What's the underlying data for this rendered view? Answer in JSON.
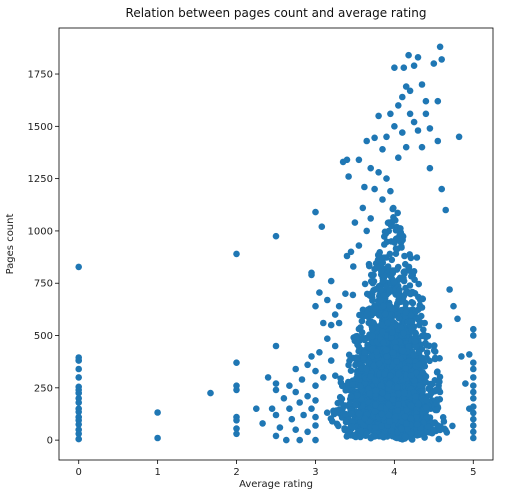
{
  "chart_data": {
    "type": "scatter",
    "title": "Relation between pages count and average rating",
    "xlabel": "Average rating",
    "ylabel": "Pages count",
    "xlim": [
      -0.25,
      5.25
    ],
    "ylim": [
      -95,
      1970
    ],
    "xticks": [
      0,
      1,
      2,
      3,
      4,
      5
    ],
    "yticks": [
      0,
      250,
      500,
      750,
      1000,
      1250,
      1500,
      1750
    ],
    "xtick_labels": [
      "0",
      "1",
      "2",
      "3",
      "4",
      "5"
    ],
    "ytick_labels": [
      "0",
      "250",
      "500",
      "750",
      "1000",
      "1250",
      "1500",
      "1750"
    ],
    "grid": false,
    "marker_color": "#1f77b4",
    "series": [
      {
        "points": [
          [
            0,
            828
          ],
          [
            0,
            395
          ],
          [
            0,
            380
          ],
          [
            0,
            340
          ],
          [
            0,
            300
          ],
          [
            0,
            255
          ],
          [
            0,
            240
          ],
          [
            0,
            225
          ],
          [
            0,
            200
          ],
          [
            0,
            180
          ],
          [
            0,
            150
          ],
          [
            0,
            135
          ],
          [
            0,
            110
          ],
          [
            0,
            95
          ],
          [
            0,
            75
          ],
          [
            0,
            50
          ],
          [
            0,
            30
          ],
          [
            0,
            5
          ],
          [
            1,
            132
          ],
          [
            1,
            10
          ],
          [
            1.67,
            225
          ],
          [
            2,
            890
          ],
          [
            2,
            370
          ],
          [
            2,
            260
          ],
          [
            2,
            240
          ],
          [
            2,
            110
          ],
          [
            2,
            95
          ],
          [
            2,
            55
          ],
          [
            2,
            30
          ],
          [
            2.25,
            150
          ],
          [
            2.33,
            80
          ],
          [
            2.4,
            300
          ],
          [
            2.45,
            150
          ],
          [
            2.5,
            975
          ],
          [
            2.5,
            450
          ],
          [
            2.5,
            270
          ],
          [
            2.5,
            240
          ],
          [
            2.5,
            120
          ],
          [
            2.5,
            20
          ],
          [
            2.55,
            60
          ],
          [
            2.6,
            200
          ],
          [
            2.63,
            0
          ],
          [
            2.67,
            260
          ],
          [
            2.67,
            150
          ],
          [
            2.7,
            100
          ],
          [
            2.75,
            340
          ],
          [
            2.75,
            230
          ],
          [
            2.75,
            50
          ],
          [
            2.8,
            180
          ],
          [
            2.8,
            0
          ],
          [
            2.83,
            290
          ],
          [
            2.85,
            120
          ],
          [
            2.9,
            360
          ],
          [
            2.9,
            210
          ],
          [
            2.9,
            40
          ],
          [
            2.95,
            800
          ],
          [
            2.95,
            790
          ],
          [
            2.95,
            400
          ],
          [
            2.95,
            150
          ],
          [
            3,
            1090
          ],
          [
            3,
            640
          ],
          [
            3,
            330
          ],
          [
            3,
            260
          ],
          [
            3,
            190
          ],
          [
            3,
            110
          ],
          [
            3,
            70
          ],
          [
            3,
            0
          ],
          [
            3.05,
            705
          ],
          [
            3.05,
            420
          ],
          [
            3.08,
            1020
          ],
          [
            3.1,
            560
          ],
          [
            3.1,
            300
          ],
          [
            3.15,
            485
          ],
          [
            3.15,
            670
          ],
          [
            3.2,
            760
          ],
          [
            3.2,
            550
          ],
          [
            3.2,
            380
          ],
          [
            3.25,
            600
          ],
          [
            3.25,
            450
          ],
          [
            3.3,
            640
          ],
          [
            3.3,
            560
          ],
          [
            3.35,
            1330
          ],
          [
            3.38,
            700
          ],
          [
            3.4,
            1340
          ],
          [
            3.4,
            880
          ],
          [
            3.42,
            1260
          ],
          [
            3.45,
            900
          ],
          [
            3.48,
            830
          ],
          [
            3.5,
            1040
          ],
          [
            3.55,
            1340
          ],
          [
            3.55,
            930
          ],
          [
            3.6,
            1110
          ],
          [
            3.62,
            1210
          ],
          [
            3.65,
            1430
          ],
          [
            3.65,
            1000
          ],
          [
            3.7,
            1300
          ],
          [
            3.7,
            1060
          ],
          [
            3.75,
            1445
          ],
          [
            3.75,
            1200
          ],
          [
            3.8,
            1550
          ],
          [
            3.8,
            1280
          ],
          [
            3.85,
            1390
          ],
          [
            3.85,
            1150
          ],
          [
            3.9,
            1450
          ],
          [
            3.9,
            1250
          ],
          [
            3.95,
            1560
          ],
          [
            3.95,
            1190
          ],
          [
            4,
            1780
          ],
          [
            4,
            1500
          ],
          [
            4.05,
            1600
          ],
          [
            4.05,
            1350
          ],
          [
            4.1,
            1640
          ],
          [
            4.1,
            1470
          ],
          [
            4.12,
            1780
          ],
          [
            4.15,
            1690
          ],
          [
            4.15,
            1400
          ],
          [
            4.18,
            1840
          ],
          [
            4.2,
            1670
          ],
          [
            4.2,
            1560
          ],
          [
            4.25,
            1790
          ],
          [
            4.25,
            1520
          ],
          [
            4.3,
            1830
          ],
          [
            4.3,
            1480
          ],
          [
            4.35,
            1700
          ],
          [
            4.35,
            1400
          ],
          [
            4.4,
            1620
          ],
          [
            4.4,
            1560
          ],
          [
            4.45,
            1490
          ],
          [
            4.45,
            1300
          ],
          [
            4.5,
            1800
          ],
          [
            4.55,
            1620
          ],
          [
            4.55,
            1430
          ],
          [
            4.58,
            1880
          ],
          [
            4.6,
            1820
          ],
          [
            4.6,
            1200
          ],
          [
            4.65,
            1100
          ],
          [
            4.7,
            720
          ],
          [
            4.75,
            640
          ],
          [
            4.8,
            580
          ],
          [
            4.82,
            1450
          ],
          [
            4.85,
            400
          ],
          [
            4.9,
            270
          ],
          [
            4.95,
            150
          ],
          [
            4.95,
            410
          ],
          [
            5,
            530
          ],
          [
            5,
            500
          ],
          [
            5,
            370
          ],
          [
            5,
            340
          ],
          [
            5,
            300
          ],
          [
            5,
            260
          ],
          [
            5,
            230
          ],
          [
            5,
            200
          ],
          [
            5,
            160
          ],
          [
            5,
            130
          ],
          [
            5,
            100
          ],
          [
            5,
            70
          ],
          [
            5,
            40
          ],
          [
            5,
            10
          ]
        ]
      }
    ]
  }
}
